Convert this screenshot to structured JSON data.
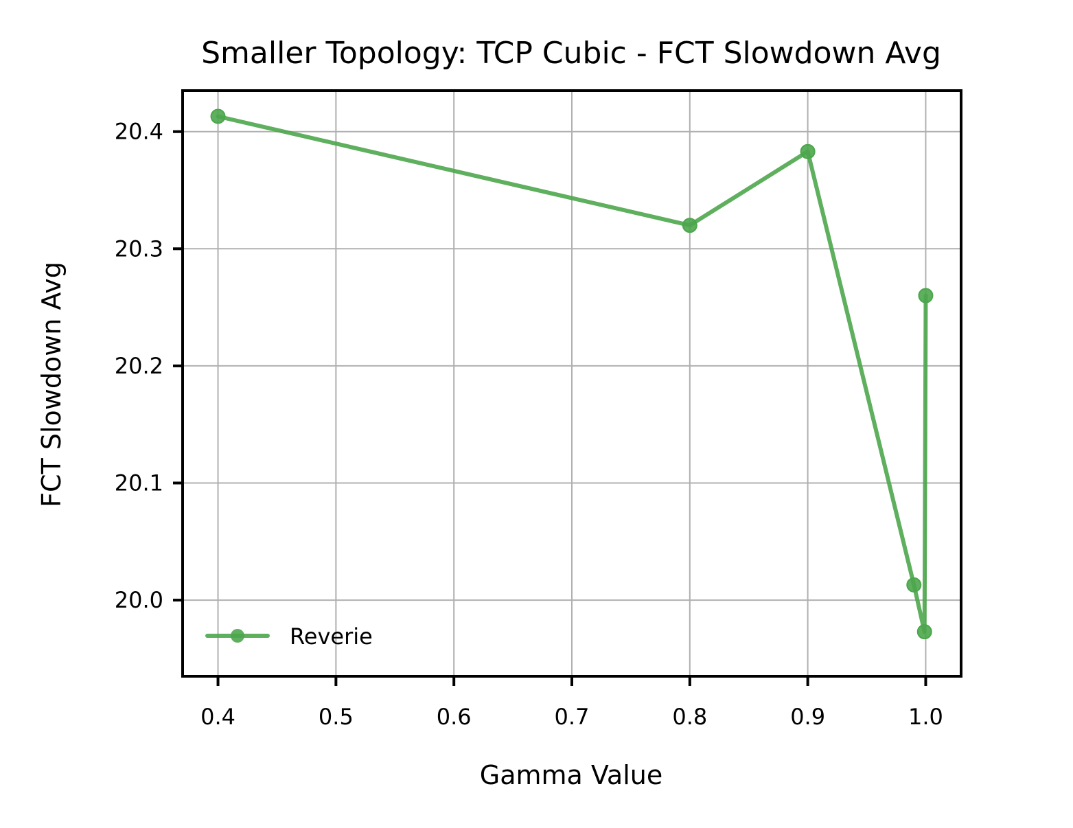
{
  "chart_data": {
    "type": "line",
    "title": "Smaller Topology: TCP Cubic - FCT Slowdown Avg",
    "xlabel": "Gamma Value",
    "ylabel": "FCT Slowdown Avg",
    "xlim": [
      0.37,
      1.03
    ],
    "ylim": [
      19.935,
      20.435
    ],
    "xticks": [
      0.4,
      0.5,
      0.6,
      0.7,
      0.8,
      0.9,
      1.0
    ],
    "xtick_labels": [
      "0.4",
      "0.5",
      "0.6",
      "0.7",
      "0.8",
      "0.9",
      "1.0"
    ],
    "yticks": [
      20.0,
      20.1,
      20.2,
      20.3,
      20.4
    ],
    "ytick_labels": [
      "20.0",
      "20.1",
      "20.2",
      "20.3",
      "20.4"
    ],
    "grid": true,
    "legend_position": "lower-left",
    "series": [
      {
        "name": "Reverie",
        "color": "#4ca64c",
        "marker": "circle",
        "x": [
          0.4,
          0.8,
          0.9,
          0.99,
          0.999,
          1.0
        ],
        "y": [
          20.413,
          20.32,
          20.383,
          20.013,
          19.973,
          20.26
        ]
      }
    ]
  }
}
